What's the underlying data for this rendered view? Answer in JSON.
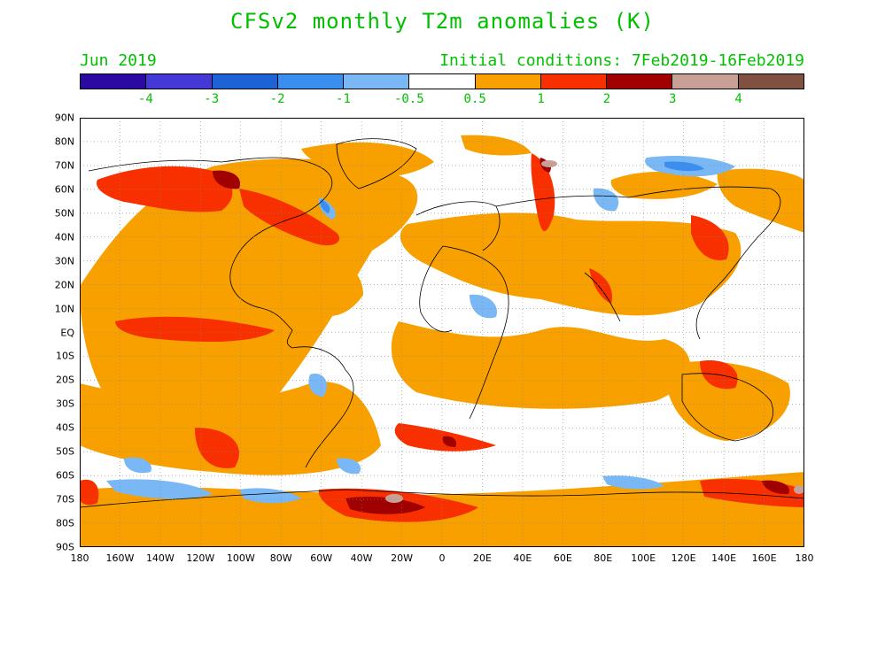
{
  "header": {
    "title": "CFSv2 monthly T2m anomalies (K)",
    "target_month": "Jun 2019",
    "initial_conditions": "Initial conditions: 7Feb2019-16Feb2019"
  },
  "text_color": "#00c000",
  "colorbar": {
    "colors": [
      "#2a0aa0",
      "#4438d6",
      "#1d63d6",
      "#3a8ef0",
      "#79b7f5",
      "#ffffff",
      "#f8a000",
      "#f83000",
      "#a00000",
      "#c8a096",
      "#805040"
    ],
    "ticks": [
      "-4",
      "-3",
      "-2",
      "-1",
      "-0.5",
      "0.5",
      "1",
      "2",
      "3",
      "4"
    ]
  },
  "map": {
    "lat_labels": [
      "90N",
      "80N",
      "70N",
      "60N",
      "50N",
      "40N",
      "30N",
      "20N",
      "10N",
      "EQ",
      "10S",
      "20S",
      "30S",
      "40S",
      "50S",
      "60S",
      "70S",
      "80S",
      "90S"
    ],
    "lon_labels": [
      "180",
      "160W",
      "140W",
      "120W",
      "100W",
      "80W",
      "60W",
      "40W",
      "20W",
      "0",
      "20E",
      "40E",
      "60E",
      "80E",
      "100E",
      "120E",
      "140E",
      "160E",
      "180"
    ]
  }
}
